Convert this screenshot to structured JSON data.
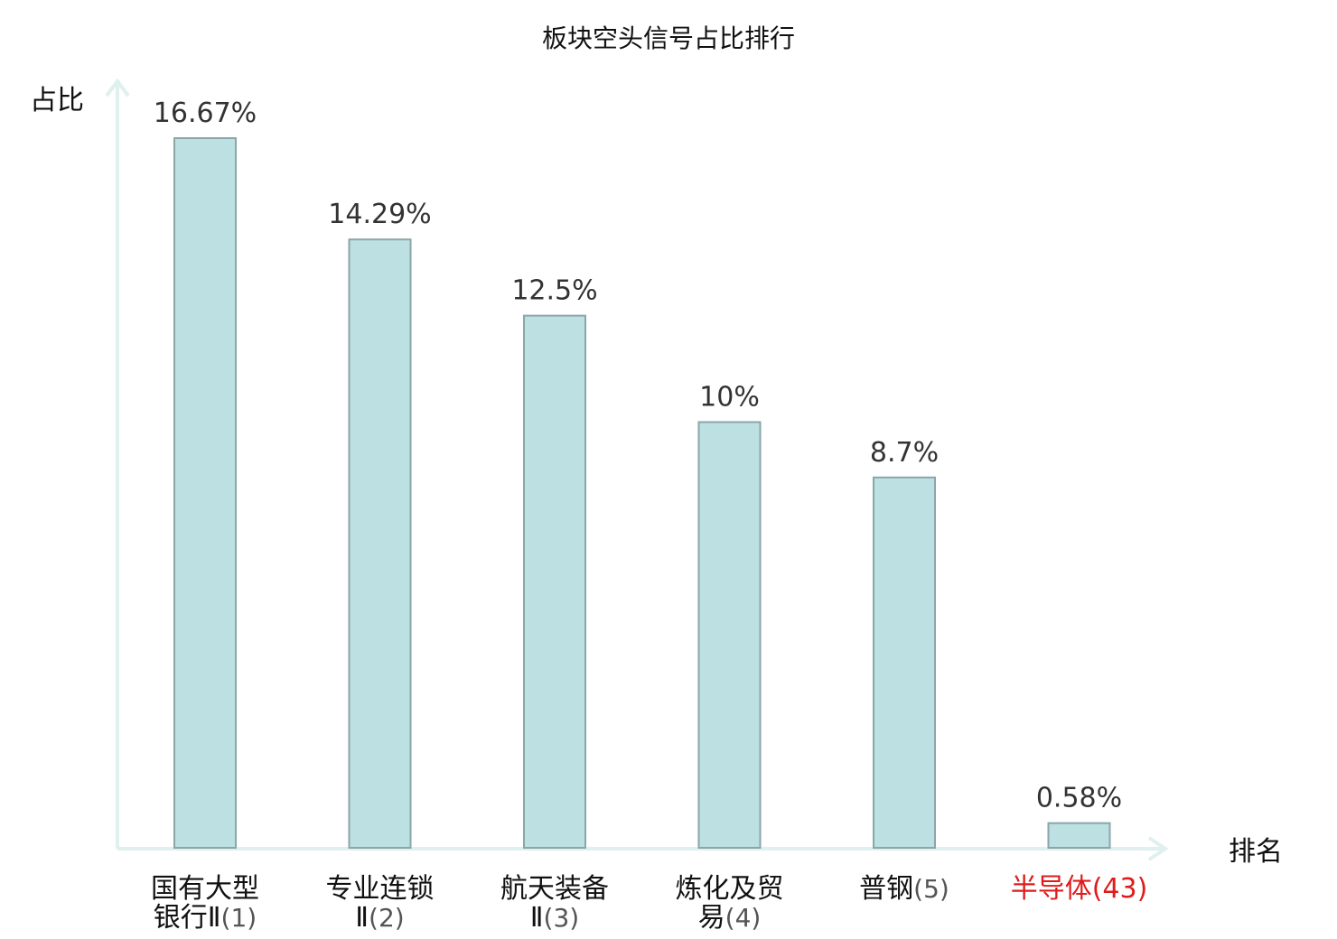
{
  "chart_data": {
    "type": "bar",
    "title": "板块空头信号占比排行",
    "ylabel": "占比",
    "xlabel": "排名",
    "ylim": [
      0,
      18.2
    ],
    "grid": false,
    "colors": {
      "bar_fill": "#bde0e3",
      "bar_stroke": "#8aa6a8",
      "axis": "#dff0ee",
      "highlight": "#e01b1b"
    },
    "categories": [
      {
        "lines": [
          "国有大型",
          "银行Ⅱ"
        ],
        "rank": "(1)",
        "highlight": false
      },
      {
        "lines": [
          "专业连锁",
          "Ⅱ"
        ],
        "rank": "(2)",
        "highlight": false
      },
      {
        "lines": [
          "航天装备",
          "Ⅱ"
        ],
        "rank": "(3)",
        "highlight": false
      },
      {
        "lines": [
          "炼化及贸",
          "易"
        ],
        "rank": "(4)",
        "highlight": false
      },
      {
        "lines": [
          "普钢"
        ],
        "rank": "(5)",
        "highlight": false
      },
      {
        "lines": [
          "半导体"
        ],
        "rank": "(43)",
        "highlight": true
      }
    ],
    "values": [
      16.67,
      14.29,
      12.5,
      10,
      8.7,
      0.58
    ],
    "value_labels": [
      "16.67%",
      "14.29%",
      "12.5%",
      "10%",
      "8.7%",
      "0.58%"
    ]
  }
}
